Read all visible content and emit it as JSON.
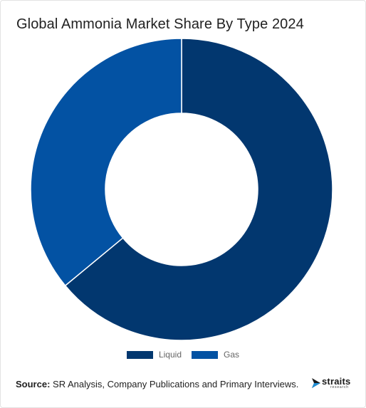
{
  "title": "Global Ammonia Market Share By Type 2024",
  "source": {
    "label": "Source:",
    "text": "SR Analysis, Company Publications and Primary Interviews."
  },
  "logo": {
    "word": "straits",
    "sub": "research"
  },
  "colors": {
    "liquid": "#02376f",
    "gas": "#0352a3",
    "logo_accent": "#1f8fd6"
  },
  "chart_data": {
    "type": "pie",
    "subtype": "donut",
    "title": "Global Ammonia Market Share By Type 2024",
    "legend_position": "bottom",
    "series": [
      {
        "name": "Liquid",
        "value": 64
      },
      {
        "name": "Gas",
        "value": 36
      }
    ]
  },
  "legend": [
    {
      "label": "Liquid",
      "color": "#02376f"
    },
    {
      "label": "Gas",
      "color": "#0352a3"
    }
  ]
}
